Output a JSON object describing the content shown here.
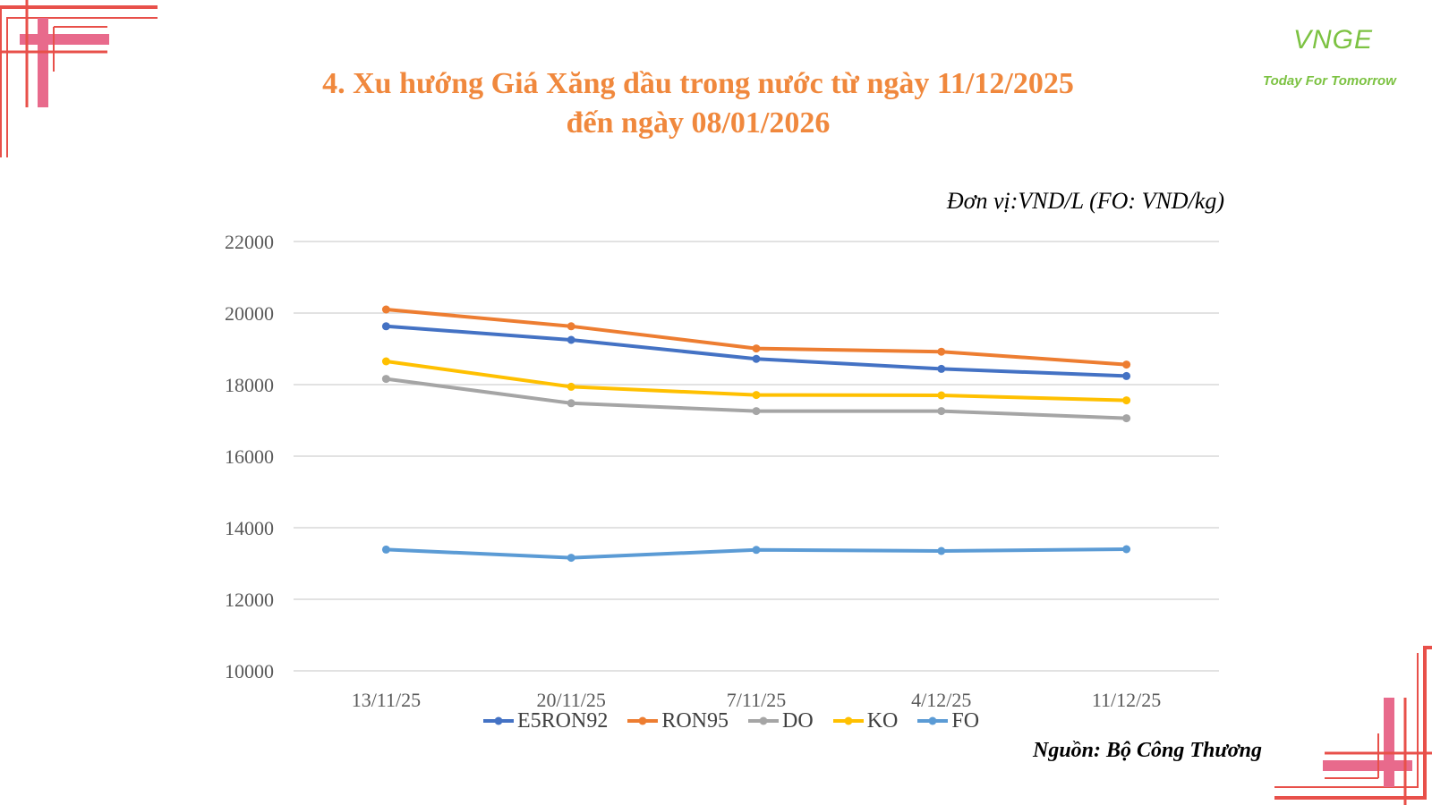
{
  "title_line1": "4. Xu hướng Giá Xăng dầu trong nước từ ngày 11/12/2025",
  "title_line2": "đến ngày 08/01/2026",
  "unit": "Đơn vị:VND/L (FO: VND/kg)",
  "source": "Nguồn: Bộ Công Thương",
  "logo": {
    "mark": "VNGE",
    "tagline": "Today For Tomorrow",
    "color": "#7cc242"
  },
  "decor_colors": {
    "red": "#e8504a",
    "pink": "#e86a8c"
  },
  "chart_data": {
    "type": "line",
    "categories": [
      "13/11/25",
      "20/11/25",
      "7/11/25",
      "4/12/25",
      "11/12/25"
    ],
    "ylim": [
      10000,
      22000
    ],
    "yticks": [
      "10000",
      "12000",
      "14000",
      "16000",
      "18000",
      "20000",
      "22000"
    ],
    "grid": true,
    "legend_position": "bottom",
    "series": [
      {
        "name": "E5RON92",
        "color": "#4472c4",
        "values": [
          19630,
          19250,
          18720,
          18440,
          18240
        ]
      },
      {
        "name": "RON95",
        "color": "#ed7d31",
        "values": [
          20100,
          19630,
          19010,
          18920,
          18560
        ]
      },
      {
        "name": "DO",
        "color": "#a5a5a5",
        "values": [
          18160,
          17480,
          17260,
          17260,
          17060
        ]
      },
      {
        "name": "KO",
        "color": "#ffc000",
        "values": [
          18650,
          17940,
          17710,
          17700,
          17560
        ]
      },
      {
        "name": "FO",
        "color": "#5b9bd5",
        "values": [
          13390,
          13160,
          13380,
          13350,
          13400
        ]
      }
    ]
  }
}
